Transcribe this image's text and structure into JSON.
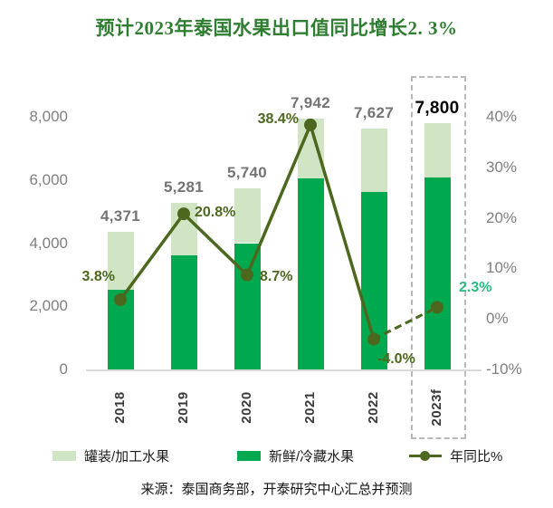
{
  "title": {
    "text": "预计2023年泰国水果出口值同比增长2. 3%",
    "color": "#2f7d31"
  },
  "chart_data": {
    "type": "stacked-bar+line",
    "categories": [
      "2018",
      "2019",
      "2020",
      "2021",
      "2022",
      "2023f"
    ],
    "series": [
      {
        "name": "罐装/加工水果",
        "role": "canned",
        "color": "#cfe5c4",
        "values": [
          1841,
          1681,
          1740,
          1892,
          2007,
          1730
        ]
      },
      {
        "name": "新鲜/冷藏水果",
        "role": "fresh",
        "color": "#00a94f",
        "values": [
          2530,
          3600,
          4000,
          6050,
          5620,
          6070
        ]
      }
    ],
    "totals": [
      4371,
      5281,
      5740,
      7942,
      7627,
      7800
    ],
    "total_labels": [
      "4,371",
      "5,281",
      "5,740",
      "7,942",
      "7,627",
      "7,800"
    ],
    "line": {
      "name": "年同比%",
      "values": [
        3.8,
        20.8,
        8.7,
        38.4,
        -4.0,
        2.3
      ],
      "labels": [
        "3.8%",
        "20.8%",
        "8.7%",
        "38.4%",
        "-4.0%",
        "2.3%"
      ],
      "color": "#4c681e",
      "highlight_last_color": "#2abd80",
      "dashed_last_segment": true
    },
    "left_axis": {
      "labels": [
        "8,000",
        "6,000",
        "4,000",
        "2,000",
        "0"
      ],
      "values": [
        8000,
        6000,
        4000,
        2000,
        0
      ],
      "range": [
        0,
        8000
      ]
    },
    "right_axis": {
      "labels": [
        "40%",
        "30%",
        "20%",
        "10%",
        "0%",
        "-10%"
      ],
      "values": [
        40,
        30,
        20,
        10,
        0,
        -10
      ],
      "range": [
        -10,
        40
      ]
    },
    "forecast_box_category": "2023f",
    "grid": false,
    "legend_position": "bottom"
  },
  "legend": {
    "items": [
      {
        "label": "罐装/加工水果",
        "swatch_color": "#cfe5c4"
      },
      {
        "label": "新鲜/冷藏水果",
        "swatch_color": "#00a94f"
      },
      {
        "label": "年同比%",
        "marker_color": "#4c681e"
      }
    ]
  },
  "source": "来源：泰国商务部，开泰研究中心汇总并预测"
}
